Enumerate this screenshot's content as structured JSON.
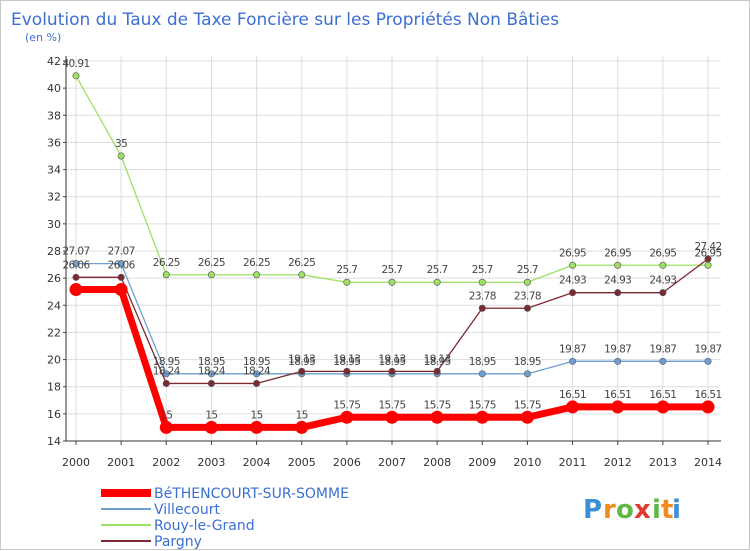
{
  "chart_data": {
    "type": "line",
    "title": "Evolution du Taux de Taxe Foncière sur les Propriétés Non Bâties",
    "subtitle": "(en %)",
    "x": [
      "2000",
      "2001",
      "2002",
      "2003",
      "2004",
      "2005",
      "2006",
      "2007",
      "2008",
      "2009",
      "2010",
      "2011",
      "2012",
      "2013",
      "2014"
    ],
    "ylim": [
      14,
      42
    ],
    "yticks": [
      14,
      16,
      18,
      20,
      22,
      24,
      26,
      28,
      30,
      32,
      34,
      36,
      38,
      40,
      42
    ],
    "grid": true,
    "legend_position": "bottom-left",
    "series": [
      {
        "name": "BéTHENCOURT-SUR-SOMME",
        "color": "#ff0000",
        "values": [
          25.16,
          25.16,
          15,
          15,
          15,
          15,
          15.75,
          15.75,
          15.75,
          15.75,
          15.75,
          16.51,
          16.51,
          16.51,
          16.51
        ],
        "labels": [
          "",
          "",
          "15",
          "15",
          "15",
          "15",
          "15.75",
          "15.75",
          "15.75",
          "15.75",
          "15.75",
          "16.51",
          "16.51",
          "16.51",
          "16.51"
        ]
      },
      {
        "name": "Villecourt",
        "color": "#6f9fd0",
        "values": [
          27.07,
          27.07,
          18.95,
          18.95,
          18.95,
          18.95,
          18.95,
          18.95,
          18.95,
          18.95,
          18.95,
          19.87,
          19.87,
          19.87,
          19.87
        ],
        "labels": [
          "27.07",
          "27.07",
          "18.95",
          "18.95",
          "18.95",
          "18.95",
          "18.95",
          "18.95",
          "18.95",
          "18.95",
          "18.95",
          "19.87",
          "19.87",
          "19.87",
          "19.87"
        ]
      },
      {
        "name": "Rouy-le-Grand",
        "color": "#9ee064",
        "values": [
          40.91,
          35,
          26.25,
          26.25,
          26.25,
          26.25,
          25.7,
          25.7,
          25.7,
          25.7,
          25.7,
          26.95,
          26.95,
          26.95,
          26.95
        ],
        "labels": [
          "40.91",
          "35",
          "26.25",
          "26.25",
          "26.25",
          "26.25",
          "25.7",
          "25.7",
          "25.7",
          "25.7",
          "25.7",
          "26.95",
          "26.95",
          "26.95",
          "26.95"
        ]
      },
      {
        "name": "Pargny",
        "color": "#7a2a30",
        "values": [
          26.06,
          26.06,
          18.24,
          18.24,
          18.24,
          19.13,
          19.13,
          19.13,
          19.13,
          23.78,
          23.78,
          24.93,
          24.93,
          24.93,
          27.42
        ],
        "labels": [
          "26.06",
          "26.06",
          "18.24",
          "18.24",
          "18.24",
          "19.13",
          "19.13",
          "19.13",
          "19.13",
          "23.78",
          "23.78",
          "24.93",
          "24.93",
          "24.93",
          "27.42"
        ]
      }
    ]
  },
  "logo": {
    "letters": [
      "P",
      "r",
      "o",
      "x",
      "i",
      "t",
      "i"
    ],
    "colors": [
      "#3b8fd6",
      "#f08c1e",
      "#62b845",
      "#e23a2e",
      "#62b845",
      "#f08c1e",
      "#3b8fd6"
    ]
  }
}
